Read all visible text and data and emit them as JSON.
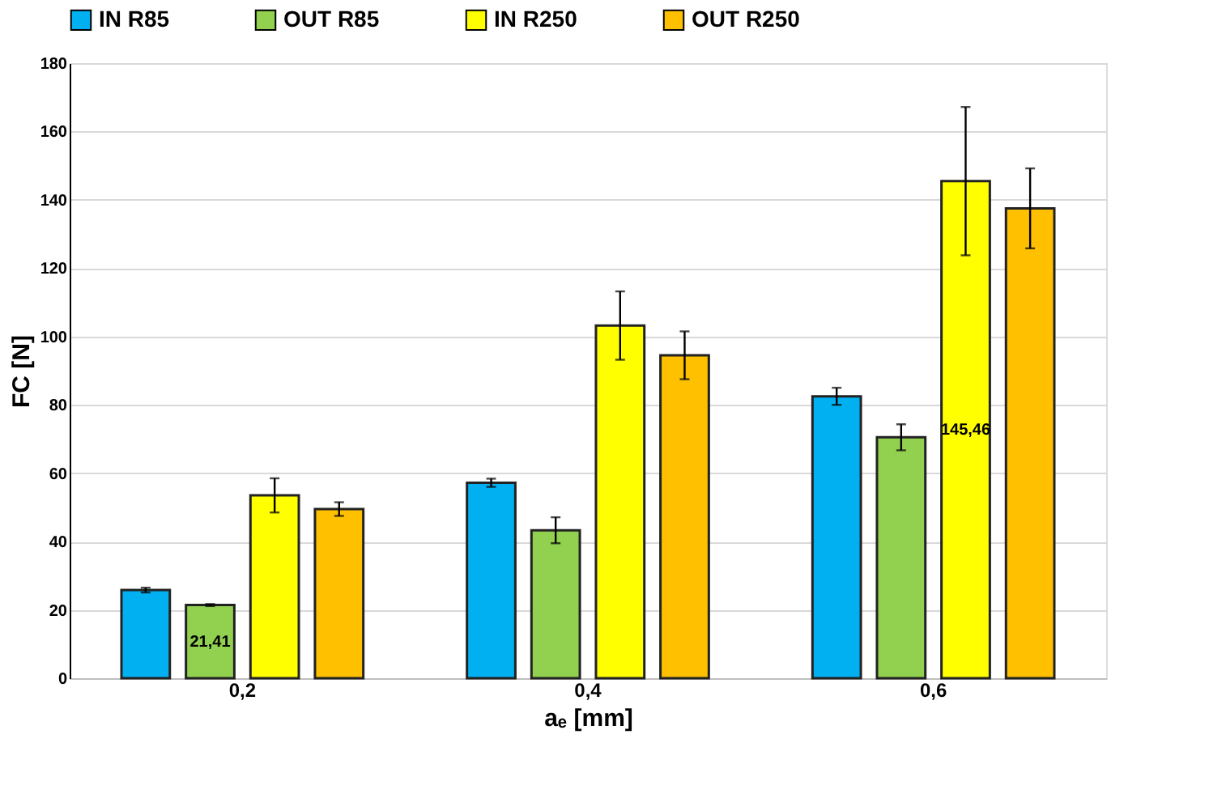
{
  "chart_data": {
    "type": "bar",
    "xlabel": "aₑ [mm]",
    "ylabel": "FC [N]",
    "categories": [
      "0,2",
      "0,4",
      "0,6"
    ],
    "series": [
      {
        "name": "IN R85",
        "color": "#00b0f0",
        "values": [
          25.8,
          57.2,
          82.5
        ],
        "errors": [
          0.7,
          1.2,
          2.5
        ],
        "value_labels": [
          null,
          null,
          null
        ]
      },
      {
        "name": "OUT R85",
        "color": "#92d050",
        "values": [
          21.41,
          43.3,
          70.5
        ],
        "errors": [
          0.3,
          3.8,
          3.8
        ],
        "value_labels": [
          "21,41",
          null,
          null
        ]
      },
      {
        "name": "IN R250",
        "color": "#ffff00",
        "values": [
          53.5,
          103.2,
          145.46
        ],
        "errors": [
          5,
          10,
          21.7
        ],
        "value_labels": [
          null,
          null,
          "145,46"
        ]
      },
      {
        "name": "OUT R250",
        "color": "#ffc000",
        "values": [
          49.5,
          94.5,
          137.5
        ],
        "errors": [
          2,
          7,
          11.7
        ],
        "value_labels": [
          null,
          null,
          null
        ]
      }
    ],
    "ylim": [
      0,
      180
    ],
    "yticks": [
      0,
      20,
      40,
      60,
      80,
      100,
      120,
      140,
      160,
      180
    ],
    "grid": "y",
    "legend": "top"
  }
}
